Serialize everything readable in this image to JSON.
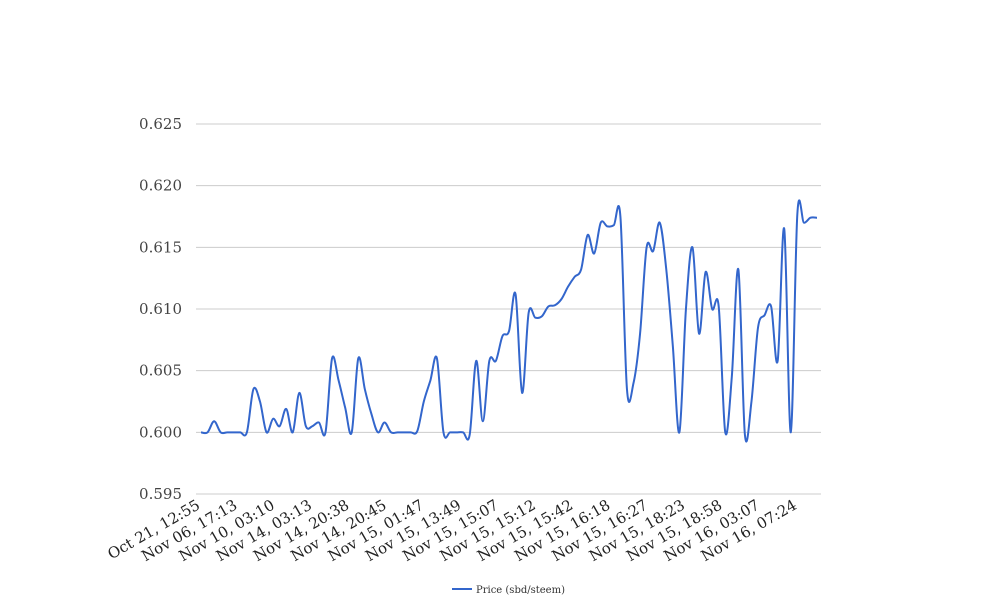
{
  "colors": {
    "series": "#3366cc",
    "grid": "#cccccc",
    "background": "#ffffff"
  },
  "chart_data": {
    "type": "line",
    "title": "",
    "xlabel": "",
    "ylabel": "",
    "ylim": [
      0.595,
      0.625
    ],
    "yticks": [
      "0.625",
      "0.620",
      "0.615",
      "0.610",
      "0.605",
      "0.600",
      "0.595"
    ],
    "grid": true,
    "legend_position": "bottom",
    "x_tick_labels": [
      "Oct 21, 12:55",
      "Nov 06, 17:13",
      "Nov 10, 03:10",
      "Nov 14, 03:13",
      "Nov 14, 20:38",
      "Nov 14, 20:45",
      "Nov 15, 01:47",
      "Nov 15, 13:49",
      "Nov 15, 15:07",
      "Nov 15, 15:12",
      "Nov 15, 15:42",
      "Nov 15, 16:18",
      "Nov 15, 16:27",
      "Nov 15, 18:23",
      "Nov 15, 18:58",
      "Nov 16, 03:07",
      "Nov 16, 07:24"
    ],
    "series": [
      {
        "name": "Price (sbd/steem)",
        "values": [
          0.6,
          0.6,
          0.6009,
          0.6,
          0.6,
          0.6,
          0.6,
          0.6,
          0.6035,
          0.6025,
          0.6,
          0.6011,
          0.6005,
          0.6019,
          0.6,
          0.6032,
          0.6005,
          0.6005,
          0.6008,
          0.6,
          0.606,
          0.6042,
          0.602,
          0.6,
          0.606,
          0.6035,
          0.6015,
          0.6,
          0.6008,
          0.6,
          0.6,
          0.6,
          0.6,
          0.6001,
          0.6025,
          0.6042,
          0.606,
          0.6,
          0.6,
          0.6,
          0.6,
          0.5998,
          0.6058,
          0.6009,
          0.6058,
          0.6058,
          0.6078,
          0.6082,
          0.6112,
          0.6032,
          0.6097,
          0.6093,
          0.6094,
          0.6102,
          0.6103,
          0.6108,
          0.6118,
          0.6126,
          0.6132,
          0.616,
          0.6145,
          0.617,
          0.6167,
          0.6168,
          0.6175,
          0.6035,
          0.604,
          0.608,
          0.615,
          0.6147,
          0.617,
          0.6132,
          0.607,
          0.6,
          0.61,
          0.615,
          0.608,
          0.613,
          0.61,
          0.6102,
          0.6,
          0.6045,
          0.6132,
          0.5998,
          0.6025,
          0.6085,
          0.6095,
          0.6102,
          0.6058,
          0.6165,
          0.6,
          0.6177,
          0.617,
          0.6174,
          0.6174
        ]
      }
    ]
  }
}
